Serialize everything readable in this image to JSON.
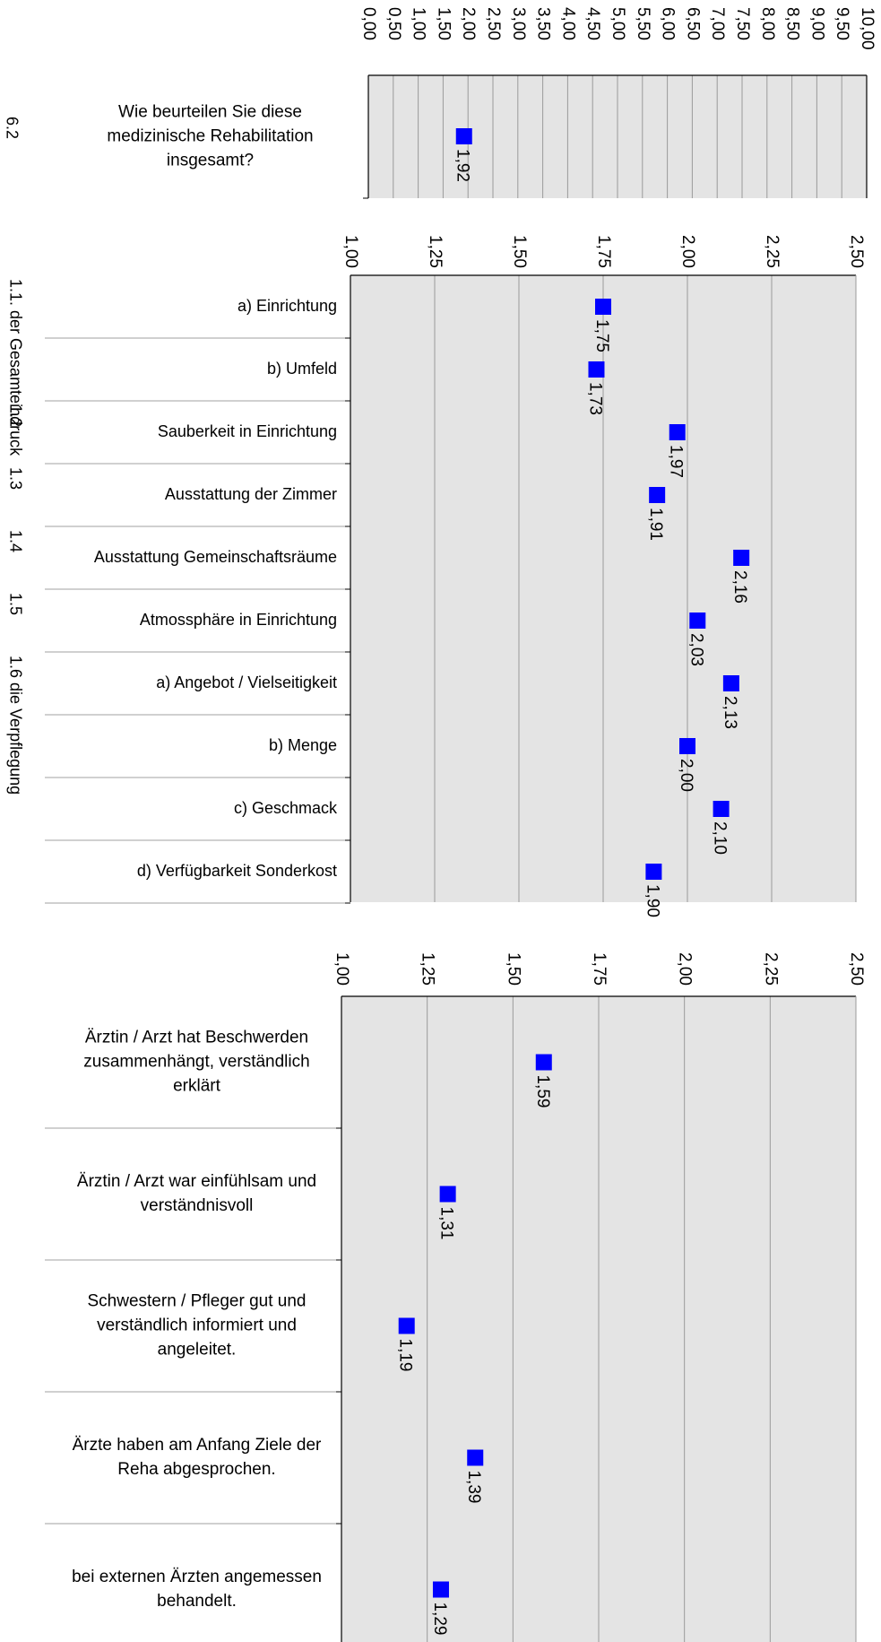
{
  "chart_data": [
    {
      "type": "scatter",
      "section": "6.2",
      "xlim": [
        0,
        10
      ],
      "ticks": [
        "0,00",
        "0,50",
        "1,00",
        "1,50",
        "2,00",
        "2,50",
        "3,00",
        "3,50",
        "4,00",
        "4,50",
        "5,00",
        "5,50",
        "6,00",
        "6,50",
        "7,00",
        "7,50",
        "8,00",
        "8,50",
        "9,00",
        "9,50",
        "10,00"
      ],
      "categories": [
        "Wie beurteilen Sie diese medizinische Rehabilitation insgesamt?"
      ],
      "values": [
        1.92
      ],
      "value_labels": [
        "1,92"
      ],
      "marker_color": "#0000ff",
      "plot_background": "#e4e4e4",
      "grid": true
    },
    {
      "type": "scatter",
      "xlim": [
        1.0,
        2.5
      ],
      "ticks": [
        "1,00",
        "1,25",
        "1,50",
        "1,75",
        "2,00",
        "2,25",
        "2,50"
      ],
      "groups": [
        {
          "label": "1.1. der Gesamteindruck",
          "rows": [
            0,
            1
          ]
        },
        {
          "label": "1.2",
          "rows": [
            2
          ]
        },
        {
          "label": "1.3",
          "rows": [
            3
          ]
        },
        {
          "label": "1.4",
          "rows": [
            4
          ]
        },
        {
          "label": "1.5",
          "rows": [
            5
          ]
        },
        {
          "label": "1.6 die Verpflegung",
          "rows": [
            6,
            9
          ]
        }
      ],
      "categories": [
        "a) Einrichtung",
        "b) Umfeld",
        "Sauberkeit in Einrichtung",
        "Ausstattung der Zimmer",
        "Ausstattung Gemeinschaftsräume",
        "Atmossphäre in Einrichtung",
        "a) Angebot / Vielseitigkeit",
        "b) Menge",
        "c) Geschmack",
        "d) Verfügbarkeit Sonderkost"
      ],
      "values": [
        1.75,
        1.73,
        1.97,
        1.91,
        2.16,
        2.03,
        2.13,
        2.0,
        2.1,
        1.9
      ],
      "value_labels": [
        "1,75",
        "1,73",
        "1,97",
        "1,91",
        "2,16",
        "2,03",
        "2,13",
        "2,00",
        "2,10",
        "1,90"
      ],
      "marker_color": "#0000ff",
      "plot_background": "#e4e4e4",
      "grid": true
    },
    {
      "type": "scatter",
      "xlim": [
        1.0,
        2.5
      ],
      "ticks": [
        "1,00",
        "1,25",
        "1,50",
        "1,75",
        "2,00",
        "2,25",
        "2,50"
      ],
      "categories": [
        "Ärztin / Arzt hat Beschwerden zusammenhängt, verständlich erklärt",
        "Ärztin / Arzt war einfühlsam und verständnisvoll",
        "Schwestern / Pfleger gut und verständlich informiert und angeleitet.",
        "Ärzte haben am Anfang Ziele der Reha abgesprochen.",
        "bei externen Ärzten angemessen behandelt."
      ],
      "values": [
        1.59,
        1.31,
        1.19,
        1.39,
        1.29
      ],
      "value_labels": [
        "1,59",
        "1,31",
        "1,19",
        "1,39",
        "1,29"
      ],
      "marker_color": "#0000ff",
      "plot_background": "#e4e4e4",
      "grid": true
    }
  ]
}
